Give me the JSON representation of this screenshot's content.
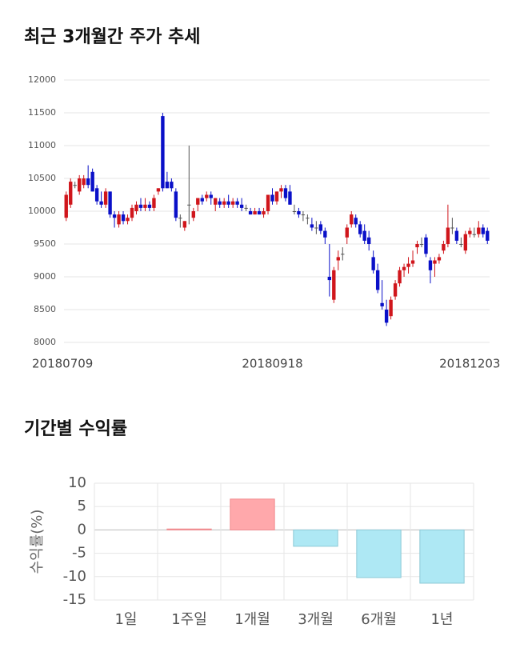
{
  "chart_data": [
    {
      "type": "candlestick",
      "title": "최근 3개월간 주가 추세",
      "categories": [
        "20180709",
        null,
        null,
        null,
        null,
        null,
        null,
        null,
        null,
        null,
        null,
        null,
        null,
        null,
        null,
        null,
        null,
        null,
        null,
        null,
        null,
        null,
        null,
        null,
        null,
        null,
        null,
        null,
        null,
        null,
        null,
        null,
        null,
        null,
        null,
        null,
        null,
        null,
        null,
        null,
        null,
        null,
        null,
        null,
        null,
        null,
        null,
        "20180918",
        null,
        null,
        null,
        null,
        null,
        null,
        null,
        null,
        null,
        null,
        null,
        null,
        null,
        null,
        null,
        null,
        null,
        null,
        null,
        null,
        null,
        null,
        null,
        null,
        null,
        null,
        null,
        null,
        null,
        null,
        null,
        null,
        null,
        null,
        null,
        null,
        null,
        null,
        null,
        null,
        null,
        null,
        null,
        null,
        "20181203",
        null,
        null,
        null,
        null
      ],
      "open": [
        9900,
        10100,
        10400,
        10300,
        10400,
        10500,
        10600,
        10350,
        10150,
        10100,
        10300,
        9950,
        9800,
        9950,
        9850,
        9900,
        10000,
        10100,
        10050,
        10100,
        10050,
        10300,
        11450,
        10450,
        10450,
        10300,
        9900,
        9750,
        10100,
        9900,
        10100,
        10200,
        10200,
        10250,
        10100,
        10150,
        10100,
        10150,
        10100,
        10150,
        10100,
        10050,
        10000,
        9950,
        10000,
        9950,
        10000,
        10250,
        10150,
        10300,
        10350,
        10300,
        10000,
        10000,
        9950,
        9900,
        9800,
        9750,
        9800,
        9700,
        9000,
        8650,
        9250,
        9350,
        9600,
        9800,
        9900,
        9800,
        9700,
        9600,
        9300,
        9100,
        8600,
        8500,
        8400,
        8700,
        8900,
        9100,
        9150,
        9200,
        9450,
        9500,
        9600,
        9250,
        9200,
        9250,
        9400,
        9500,
        9750,
        9700,
        9500,
        9400,
        9650,
        9650,
        9650,
        9750,
        9700
      ],
      "high": [
        10300,
        10500,
        10450,
        10550,
        10550,
        10700,
        10650,
        10400,
        10300,
        10350,
        10300,
        10000,
        10000,
        10000,
        9950,
        10100,
        10150,
        10200,
        10200,
        10150,
        10250,
        10350,
        11500,
        10600,
        10500,
        10350,
        9950,
        9850,
        11000,
        10050,
        10200,
        10250,
        10300,
        10300,
        10200,
        10200,
        10200,
        10250,
        10200,
        10200,
        10200,
        10100,
        10050,
        10050,
        10050,
        10050,
        10250,
        10350,
        10300,
        10400,
        10400,
        10400,
        10100,
        10050,
        10000,
        9950,
        9900,
        9850,
        9850,
        9750,
        9500,
        9150,
        9400,
        9450,
        9800,
        10000,
        9950,
        9850,
        9800,
        9700,
        9400,
        9200,
        8950,
        8650,
        8700,
        8950,
        9150,
        9200,
        9300,
        9400,
        9550,
        9600,
        9650,
        9300,
        9300,
        9350,
        9550,
        10100,
        9900,
        9750,
        9600,
        9700,
        9750,
        9750,
        9850,
        9800,
        9750
      ],
      "low": [
        9850,
        10050,
        10350,
        10250,
        10350,
        10350,
        10300,
        10100,
        10050,
        10050,
        9900,
        9750,
        9750,
        9800,
        9800,
        9850,
        9950,
        10000,
        10000,
        10000,
        10000,
        10250,
        10300,
        10350,
        10300,
        9850,
        9750,
        9700,
        9800,
        9850,
        10000,
        10100,
        10150,
        10100,
        10000,
        10050,
        10050,
        10050,
        10050,
        10050,
        10000,
        10000,
        9950,
        9950,
        9950,
        9900,
        9950,
        10100,
        10100,
        10200,
        10150,
        10100,
        9950,
        9900,
        9850,
        9800,
        9700,
        9650,
        9650,
        9500,
        8700,
        8600,
        9100,
        9250,
        9500,
        9750,
        9750,
        9600,
        9500,
        9400,
        9050,
        8750,
        8500,
        8250,
        8350,
        8650,
        8850,
        9000,
        9050,
        9150,
        9350,
        9450,
        9300,
        8900,
        9000,
        9200,
        9350,
        9450,
        9650,
        9500,
        9450,
        9350,
        9600,
        9600,
        9600,
        9600,
        9500
      ],
      "close": [
        10250,
        10450,
        10400,
        10500,
        10500,
        10400,
        10300,
        10150,
        10100,
        10300,
        9950,
        9900,
        9950,
        9850,
        9900,
        10050,
        10100,
        10050,
        10100,
        10050,
        10200,
        10350,
        10350,
        10350,
        10350,
        9900,
        9900,
        9850,
        10100,
        10000,
        10200,
        10150,
        10250,
        10200,
        10200,
        10100,
        10150,
        10100,
        10150,
        10100,
        10050,
        10050,
        9950,
        10000,
        9950,
        10000,
        10250,
        10150,
        10300,
        10350,
        10200,
        10100,
        10000,
        9950,
        9950,
        9900,
        9750,
        9750,
        9700,
        9600,
        8950,
        9100,
        9300,
        9350,
        9750,
        9950,
        9800,
        9650,
        9550,
        9500,
        9100,
        8800,
        8550,
        8300,
        8650,
        8900,
        9100,
        9150,
        9200,
        9250,
        9500,
        9500,
        9350,
        9100,
        9250,
        9300,
        9500,
        9750,
        9750,
        9550,
        9500,
        9650,
        9700,
        9650,
        9750,
        9650,
        9550
      ],
      "up_color": "#d0161c",
      "down_color": "#0a10c8",
      "ylim": [
        8000,
        12000
      ],
      "yticks": [
        8000,
        8500,
        9000,
        9500,
        10000,
        10500,
        11000,
        11500,
        12000
      ],
      "grid": true
    },
    {
      "type": "bar",
      "title": "기간별 수익률",
      "ylabel": "수익률(%)",
      "categories": [
        "1일",
        "1주일",
        "1개월",
        "3개월",
        "6개월",
        "1년"
      ],
      "values": [
        0,
        0.2,
        6.6,
        -3.5,
        -10.2,
        -11.4
      ],
      "positive_color": "#ffa8ab",
      "negative_color": "#aee8f4",
      "ylim": [
        -15,
        10
      ],
      "yticks": [
        10,
        5,
        0,
        -5,
        -10,
        -15
      ],
      "grid": true
    }
  ]
}
